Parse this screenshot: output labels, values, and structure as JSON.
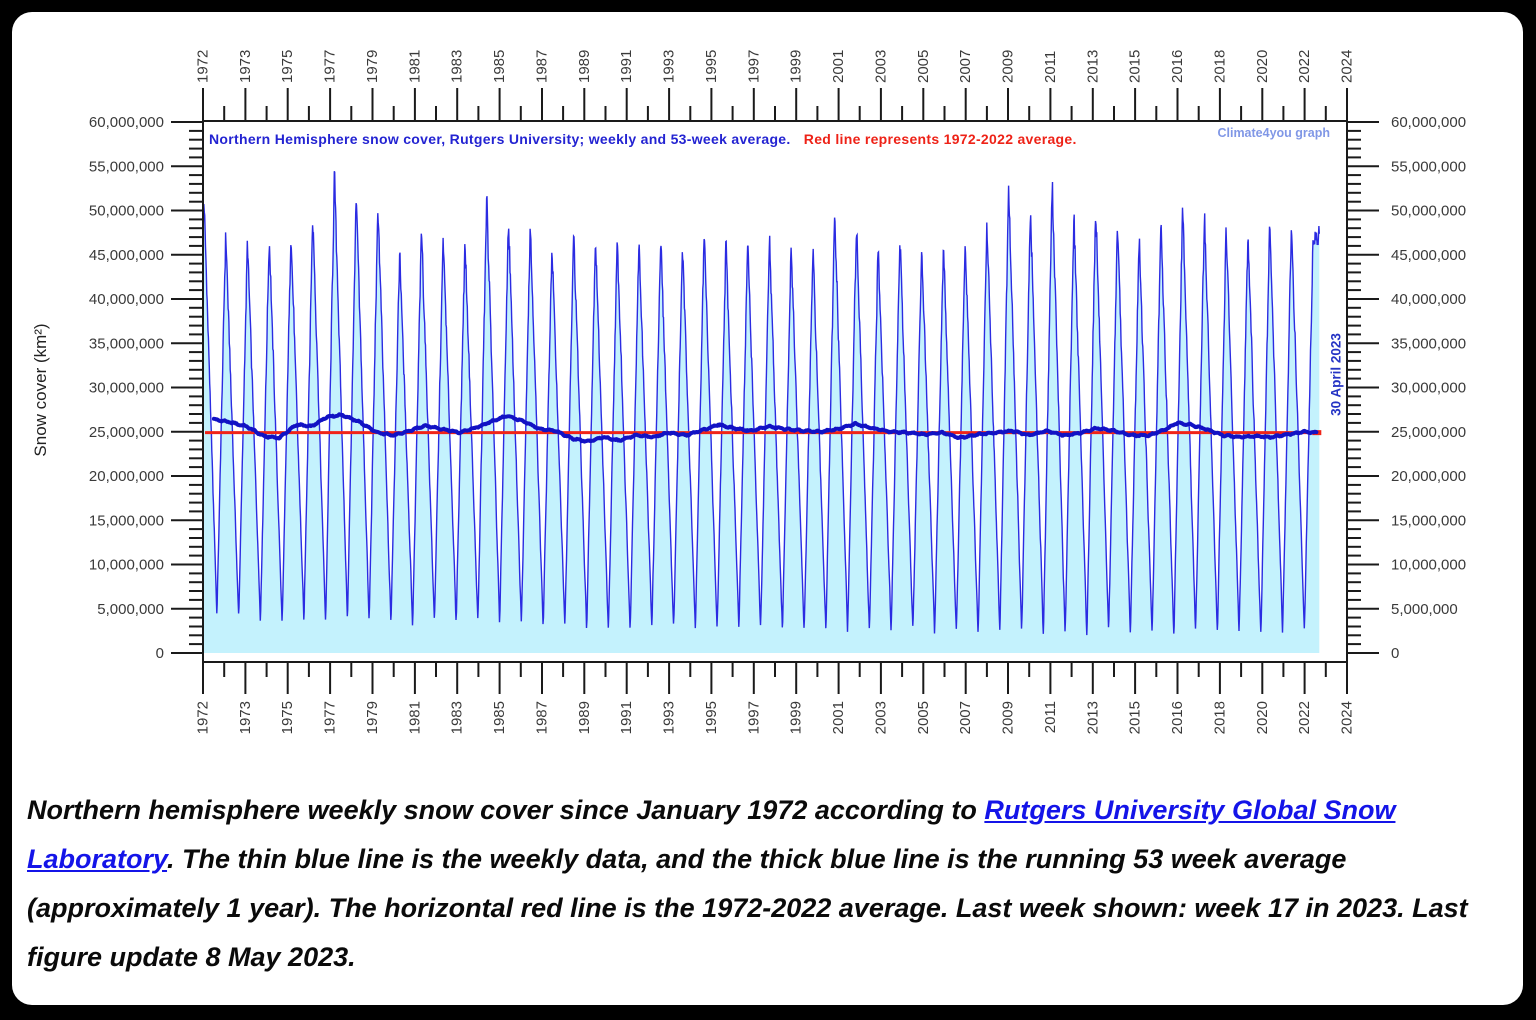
{
  "chart_data": {
    "type": "line",
    "title_blue": "Northern Hemisphere snow cover, Rutgers University; weekly and 53-week average.",
    "title_red": "Red line represents 1972-2022 average.",
    "watermark": "Climate4you graph",
    "last_point_label": "30 April 2023",
    "ylabel": "Snow cover (km²)",
    "ylim": [
      0,
      60000000
    ],
    "y_tick_step": 5000000,
    "y_tick_labels": [
      "60,000,000",
      "55,000,000",
      "50,000,000",
      "45,000,000",
      "40,000,000",
      "35,000,000",
      "30,000,000",
      "25,000,000",
      "20,000,000",
      "15,000,000",
      "10,000,000",
      "5,000,000",
      "0"
    ],
    "x_tick_labels": [
      "1972",
      "1973",
      "1975",
      "1977",
      "1979",
      "1981",
      "1983",
      "1985",
      "1987",
      "1989",
      "1991",
      "1993",
      "1995",
      "1997",
      "1999",
      "2001",
      "2003",
      "2005",
      "2007",
      "2009",
      "2011",
      "2013",
      "2015",
      "2016",
      "2018",
      "2020",
      "2022",
      "2024"
    ],
    "grid": false,
    "colors": {
      "weekly_line": "#2b2be2",
      "weekly_fill": "#c4f2fd",
      "avg53_line": "#1212c4",
      "mean_line": "#f02418",
      "frame": "#1a1a1a",
      "tick_label": "#3a3a3a"
    },
    "series": [
      {
        "name": "weekly snow cover",
        "years": [
          1972,
          1973,
          1974,
          1975,
          1976,
          1977,
          1978,
          1979,
          1980,
          1981,
          1982,
          1983,
          1984,
          1985,
          1986,
          1987,
          1988,
          1989,
          1990,
          1991,
          1992,
          1993,
          1994,
          1995,
          1996,
          1997,
          1998,
          1999,
          2000,
          2001,
          2002,
          2003,
          2004,
          2005,
          2006,
          2007,
          2008,
          2009,
          2010,
          2011,
          2012,
          2013,
          2014,
          2015,
          2016,
          2017,
          2018,
          2019,
          2020,
          2021,
          2022,
          2023
        ],
        "winter_max_Mkm2": [
          51.5,
          47.5,
          46.5,
          47.0,
          47.5,
          49.5,
          54.0,
          51.5,
          50.5,
          45.5,
          48.0,
          47.0,
          46.5,
          51.5,
          49.0,
          48.5,
          46.0,
          47.5,
          47.0,
          46.5,
          46.5,
          47.0,
          46.0,
          47.5,
          46.5,
          46.5,
          47.0,
          46.0,
          45.5,
          49.5,
          48.5,
          46.0,
          47.0,
          46.0,
          46.0,
          46.5,
          49.0,
          52.5,
          50.0,
          53.0,
          49.5,
          50.5,
          48.5,
          47.0,
          48.5,
          50.5,
          49.5,
          48.0,
          47.5,
          48.5,
          48.5,
          47.0
        ],
        "summer_min_Mkm2": [
          4.2,
          3.8,
          3.5,
          3.2,
          3.5,
          3.3,
          3.6,
          3.4,
          3.2,
          3.0,
          3.3,
          3.4,
          3.2,
          3.3,
          3.1,
          2.9,
          2.8,
          2.6,
          2.4,
          2.5,
          2.8,
          2.6,
          2.6,
          2.4,
          2.7,
          2.5,
          2.4,
          2.3,
          2.4,
          2.3,
          2.2,
          2.3,
          2.4,
          2.2,
          2.1,
          1.9,
          2.2,
          2.1,
          1.9,
          1.8,
          1.7,
          2.2,
          2.1,
          2.0,
          1.8,
          2.1,
          2.0,
          2.1,
          1.8,
          2.2,
          2.3
        ],
        "last_week": "week 17 of 2023 (30 April 2023)"
      },
      {
        "name": "53-week running average",
        "points_year_valueM": [
          [
            1972.5,
            26.4
          ],
          [
            1973.2,
            26.1
          ],
          [
            1974.0,
            25.6
          ],
          [
            1974.8,
            24.5
          ],
          [
            1975.5,
            24.3
          ],
          [
            1976.3,
            25.8
          ],
          [
            1977.0,
            25.6
          ],
          [
            1977.7,
            26.7
          ],
          [
            1978.4,
            26.9
          ],
          [
            1979.2,
            26.1
          ],
          [
            1980.0,
            24.9
          ],
          [
            1980.8,
            24.6
          ],
          [
            1981.5,
            25.1
          ],
          [
            1982.2,
            25.7
          ],
          [
            1983.0,
            25.3
          ],
          [
            1983.8,
            24.9
          ],
          [
            1984.6,
            25.5
          ],
          [
            1985.4,
            26.3
          ],
          [
            1986.0,
            26.8
          ],
          [
            1986.8,
            26.1
          ],
          [
            1987.5,
            25.3
          ],
          [
            1988.2,
            25.1
          ],
          [
            1989.0,
            24.2
          ],
          [
            1989.7,
            23.9
          ],
          [
            1990.4,
            24.4
          ],
          [
            1991.1,
            24.0
          ],
          [
            1991.9,
            24.6
          ],
          [
            1992.7,
            24.4
          ],
          [
            1993.4,
            24.9
          ],
          [
            1994.2,
            24.6
          ],
          [
            1995.0,
            25.2
          ],
          [
            1995.7,
            25.8
          ],
          [
            1996.4,
            25.4
          ],
          [
            1997.2,
            25.1
          ],
          [
            1998.0,
            25.6
          ],
          [
            1998.8,
            25.3
          ],
          [
            1999.6,
            25.1
          ],
          [
            2000.4,
            25.0
          ],
          [
            2001.2,
            25.3
          ],
          [
            2002.0,
            25.9
          ],
          [
            2002.8,
            25.4
          ],
          [
            2003.6,
            25.0
          ],
          [
            2004.4,
            24.9
          ],
          [
            2005.2,
            24.7
          ],
          [
            2006.0,
            24.9
          ],
          [
            2006.8,
            24.3
          ],
          [
            2007.6,
            24.7
          ],
          [
            2008.4,
            24.9
          ],
          [
            2009.2,
            25.1
          ],
          [
            2010.0,
            24.6
          ],
          [
            2010.8,
            25.1
          ],
          [
            2011.6,
            24.6
          ],
          [
            2012.4,
            24.9
          ],
          [
            2013.1,
            25.4
          ],
          [
            2013.9,
            25.1
          ],
          [
            2014.7,
            24.6
          ],
          [
            2015.5,
            24.6
          ],
          [
            2016.2,
            25.2
          ],
          [
            2016.8,
            26.0
          ],
          [
            2017.4,
            25.8
          ],
          [
            2018.1,
            25.3
          ],
          [
            2018.9,
            24.6
          ],
          [
            2019.6,
            24.4
          ],
          [
            2020.4,
            24.5
          ],
          [
            2021.1,
            24.4
          ],
          [
            2021.9,
            24.7
          ],
          [
            2022.6,
            25.0
          ],
          [
            2023.2,
            24.9
          ]
        ]
      },
      {
        "name": "1972-2022 average line",
        "value": 24900000
      }
    ]
  },
  "caption": {
    "seg1": "Northern hemisphere weekly snow cover since January 1972 according to ",
    "link_text": "Rutgers University Global Snow Laboratory",
    "seg2": ". The thin blue line is the weekly data, and the thick blue line is the running 53 week average (approximately 1 year). The horizontal red line is the 1972-2022 average. Last week shown: week 17 in 2023. Last figure update 8 May 2023."
  }
}
